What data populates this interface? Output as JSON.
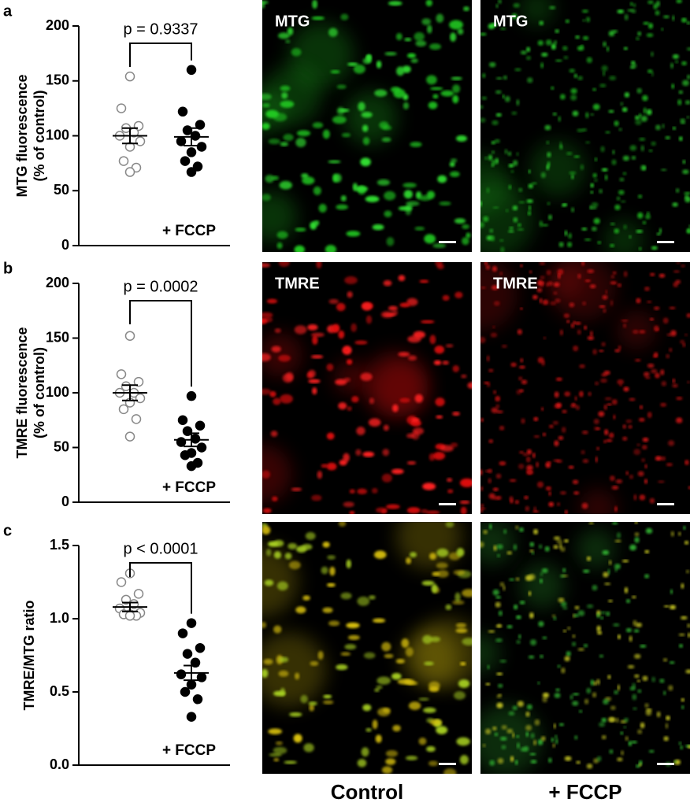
{
  "chart_data": [
    {
      "type": "dot",
      "panel_label": "a",
      "ylabel": [
        "MTG fluorescence",
        "(% of control)"
      ],
      "p_text": "p = 0.9337",
      "annotation": "+ FCCP",
      "ylim": [
        0,
        200
      ],
      "yticks": [
        0,
        50,
        100,
        150,
        200
      ],
      "series": [
        {
          "filled": false,
          "color": "#888888",
          "values": [
            154,
            125,
            109,
            107,
            103,
            100,
            95,
            90,
            77,
            71,
            67
          ],
          "mean": 100,
          "sem": 7
        },
        {
          "filled": true,
          "color": "#000000",
          "values": [
            160,
            122,
            110,
            105,
            100,
            95,
            90,
            85,
            77,
            72,
            67
          ],
          "mean": 99,
          "sem": 8
        }
      ]
    },
    {
      "type": "dot",
      "panel_label": "b",
      "ylabel": [
        "TMRE fluorescence",
        "(% of control)"
      ],
      "p_text": "p = 0.0002",
      "annotation": "+ FCCP",
      "ylim": [
        0,
        200
      ],
      "yticks": [
        0,
        50,
        100,
        150,
        200
      ],
      "series": [
        {
          "filled": false,
          "color": "#888888",
          "values": [
            152,
            117,
            110,
            106,
            100,
            100,
            95,
            91,
            85,
            76,
            60
          ],
          "mean": 100,
          "sem": 7
        },
        {
          "filled": true,
          "color": "#000000",
          "values": [
            97,
            75,
            70,
            65,
            58,
            55,
            50,
            45,
            43,
            36,
            33
          ],
          "mean": 57,
          "sem": 6
        }
      ]
    },
    {
      "type": "dot",
      "panel_label": "c",
      "ylabel": [
        "TMRE/MTG ratio"
      ],
      "p_text": "p < 0.0001",
      "annotation": "+ FCCP",
      "ylim": [
        0,
        1.5
      ],
      "yticks": [
        {
          "value": 0,
          "label": "0.0"
        },
        0.5,
        {
          "value": 1,
          "label": "1.0"
        },
        1.5
      ],
      "series": [
        {
          "filled": false,
          "color": "#888888",
          "values": [
            1.31,
            1.25,
            1.17,
            1.13,
            1.1,
            1.07,
            1.04,
            1.03,
            1.03,
            1.02,
            1.02
          ],
          "mean": 1.08,
          "sem": 0.03
        },
        {
          "filled": true,
          "color": "#000000",
          "values": [
            0.97,
            0.9,
            0.8,
            0.76,
            0.7,
            0.62,
            0.6,
            0.55,
            0.5,
            0.45,
            0.33
          ],
          "mean": 0.63,
          "sem": 0.05
        }
      ]
    }
  ],
  "image_panels": {
    "columns": [
      "Control",
      "+ FCCP"
    ],
    "labels": [
      [
        "MTG",
        "MTG"
      ],
      [
        "TMRE",
        "TMRE"
      ]
    ]
  }
}
